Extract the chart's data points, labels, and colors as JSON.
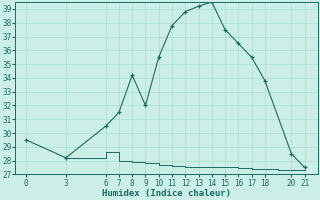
{
  "title": "",
  "xlabel": "Humidex (Indice chaleur)",
  "bg_color": "#cceee8",
  "grid_color": "#aaddcc",
  "line_color": "#1a6b5e",
  "x_main": [
    0,
    3,
    6,
    7,
    8,
    9,
    10,
    11,
    12,
    13,
    14,
    15,
    16,
    17,
    18,
    20,
    21
  ],
  "y_main": [
    29.5,
    28.2,
    30.5,
    31.5,
    34.2,
    32.0,
    35.5,
    37.8,
    38.8,
    39.2,
    39.5,
    37.5,
    36.5,
    35.5,
    33.8,
    28.5,
    27.5
  ],
  "x_flat_steps": [
    3,
    4,
    6,
    7,
    8,
    9,
    10,
    11,
    12,
    13,
    14,
    15,
    16,
    17,
    18,
    19,
    20,
    21
  ],
  "y_flat_steps": [
    28.2,
    28.2,
    28.6,
    28.0,
    27.9,
    27.8,
    27.65,
    27.6,
    27.55,
    27.5,
    27.5,
    27.5,
    27.45,
    27.4,
    27.4,
    27.35,
    27.3,
    27.3
  ],
  "ylim": [
    27,
    39.5
  ],
  "yticks": [
    27,
    28,
    29,
    30,
    31,
    32,
    33,
    34,
    35,
    36,
    37,
    38,
    39
  ],
  "xticks": [
    0,
    3,
    6,
    7,
    8,
    9,
    10,
    11,
    12,
    13,
    14,
    15,
    16,
    17,
    18,
    20,
    21
  ],
  "title_fontsize": 6,
  "label_fontsize": 6.5,
  "tick_fontsize": 5.5
}
